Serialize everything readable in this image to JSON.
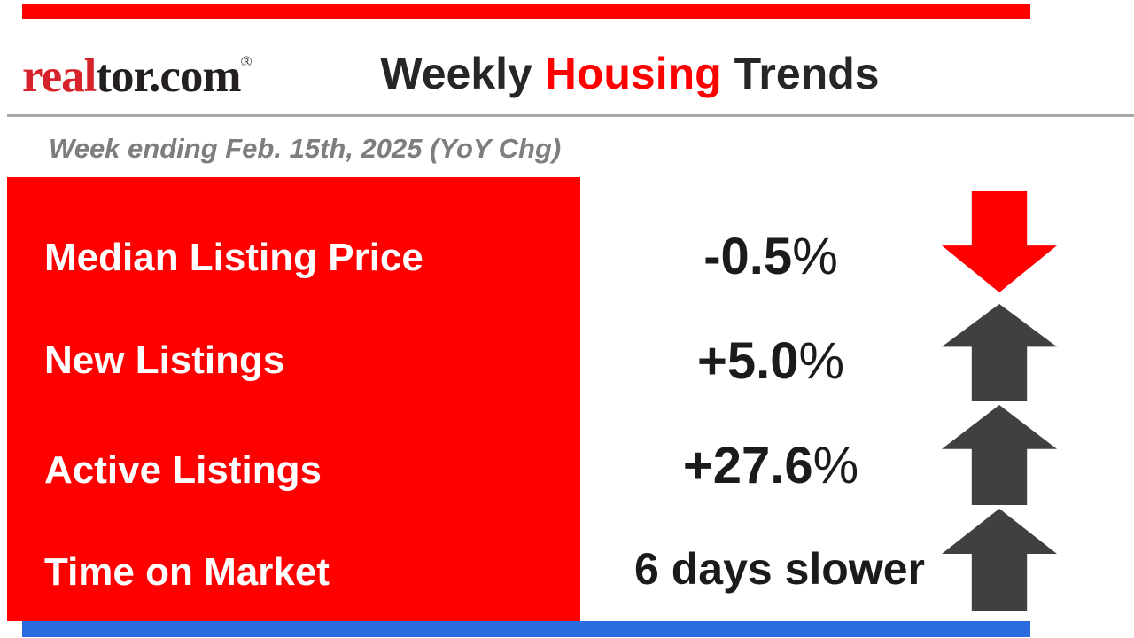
{
  "colors": {
    "red": "#ff0000",
    "logo_red": "#d6222a",
    "charcoal": "#404040",
    "blue": "#2a6ce0",
    "divider_gray": "#a8a8a8",
    "subtitle_gray": "#7e7e7e",
    "text_black": "#1b1b1b",
    "label_white": "#ffffff"
  },
  "header": {
    "logo": {
      "part1": "real",
      "part2": "tor.com",
      "registered": "®"
    },
    "title": {
      "part1": "Weekly ",
      "part2": "Housing",
      "part3": " Trends"
    }
  },
  "subtitle": {
    "text": "Week ending Feb. 15th, 2025 (YoY Chg)"
  },
  "rows": [
    {
      "label": "Median Listing Price",
      "value": "-0.5",
      "suffix": "%",
      "direction": "down",
      "arrow_color": "#ff0000"
    },
    {
      "label": "New Listings",
      "value": "+5.0",
      "suffix": "%",
      "direction": "up",
      "arrow_color": "#404040"
    },
    {
      "label": "Active Listings",
      "value": "+27.6",
      "suffix": "%",
      "direction": "up",
      "arrow_color": "#404040"
    },
    {
      "label": "Time on Market",
      "value": "6 days slower",
      "suffix": "",
      "direction": "up",
      "arrow_color": "#404040"
    }
  ],
  "chart_data": {
    "type": "table",
    "title": "Weekly Housing Trends",
    "subtitle": "Week ending Feb. 15th, 2025 (YoY Chg)",
    "brand": "realtor.com",
    "categories": [
      "Median Listing Price",
      "New Listings",
      "Active Listings",
      "Time on Market"
    ],
    "values": [
      "-0.5%",
      "+5.0%",
      "+27.6%",
      "6 days slower"
    ],
    "numeric_values": [
      -0.5,
      5.0,
      27.6,
      6
    ],
    "units": [
      "% YoY",
      "% YoY",
      "% YoY",
      "days YoY"
    ],
    "directions": [
      "down",
      "up",
      "up",
      "up"
    ]
  }
}
